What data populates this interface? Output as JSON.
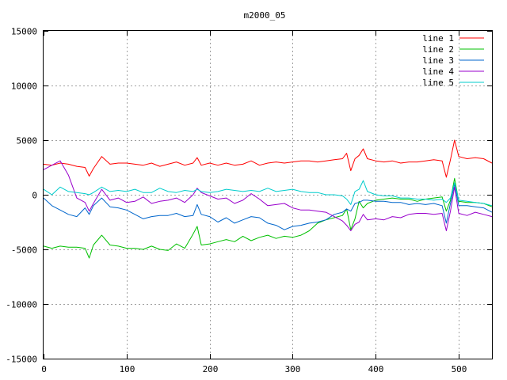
{
  "chart_data": {
    "type": "line",
    "title": "m2000_05",
    "xlabel": "",
    "ylabel": "",
    "xlim": [
      0,
      540
    ],
    "ylim": [
      -15000,
      15000
    ],
    "x_ticks": [
      0,
      100,
      200,
      300,
      400,
      500
    ],
    "y_ticks": [
      -15000,
      -10000,
      -5000,
      0,
      5000,
      10000,
      15000
    ],
    "grid": true,
    "legend_position": "top-right",
    "x": [
      0,
      10,
      20,
      30,
      40,
      50,
      55,
      60,
      70,
      80,
      90,
      100,
      110,
      120,
      130,
      140,
      150,
      160,
      170,
      180,
      185,
      190,
      200,
      210,
      220,
      230,
      240,
      250,
      260,
      270,
      280,
      290,
      300,
      310,
      320,
      330,
      340,
      350,
      360,
      365,
      370,
      375,
      380,
      385,
      390,
      400,
      410,
      420,
      430,
      440,
      450,
      460,
      470,
      480,
      485,
      490,
      495,
      500,
      510,
      520,
      530,
      540
    ],
    "series": [
      {
        "name": "line 1",
        "color": "#ff0000",
        "values": [
          2800,
          2700,
          2900,
          2800,
          2600,
          2500,
          1700,
          2400,
          3500,
          2800,
          2900,
          2900,
          2800,
          2700,
          2900,
          2600,
          2800,
          3000,
          2700,
          2900,
          3400,
          2700,
          2900,
          2700,
          2900,
          2700,
          2800,
          3100,
          2700,
          2900,
          3000,
          2900,
          3000,
          3100,
          3100,
          3000,
          3100,
          3200,
          3300,
          3800,
          2200,
          3300,
          3600,
          4200,
          3300,
          3100,
          3000,
          3100,
          2900,
          3000,
          3000,
          3100,
          3200,
          3100,
          1600,
          3200,
          5000,
          3500,
          3300,
          3400,
          3300,
          2900
        ]
      },
      {
        "name": "line 2",
        "color": "#00c000",
        "values": [
          -4700,
          -4900,
          -4700,
          -4800,
          -4800,
          -4900,
          -5800,
          -4600,
          -3700,
          -4600,
          -4700,
          -4900,
          -4900,
          -5000,
          -4700,
          -5000,
          -5100,
          -4500,
          -4900,
          -3600,
          -2900,
          -4600,
          -4500,
          -4300,
          -4100,
          -4300,
          -3800,
          -4200,
          -3900,
          -3700,
          -4000,
          -3800,
          -3900,
          -3700,
          -3300,
          -2600,
          -2300,
          -2100,
          -1900,
          -1300,
          -3200,
          -2200,
          -600,
          -1200,
          -800,
          -500,
          -400,
          -300,
          -400,
          -400,
          -600,
          -400,
          -300,
          -200,
          -1500,
          -500,
          1500,
          -600,
          -700,
          -700,
          -800,
          -1100
        ]
      },
      {
        "name": "line 3",
        "color": "#0066cc",
        "values": [
          -300,
          -1000,
          -1400,
          -1800,
          -2000,
          -1200,
          -1800,
          -1000,
          -300,
          -1100,
          -1200,
          -1400,
          -1800,
          -2200,
          -2000,
          -1900,
          -1900,
          -1700,
          -2000,
          -1900,
          -900,
          -1800,
          -2000,
          -2500,
          -2100,
          -2600,
          -2300,
          -2000,
          -2100,
          -2600,
          -2800,
          -3200,
          -2900,
          -2800,
          -2600,
          -2500,
          -2300,
          -1800,
          -1600,
          -1300,
          -1500,
          -800,
          -700,
          -500,
          -500,
          -600,
          -600,
          -700,
          -700,
          -900,
          -800,
          -900,
          -800,
          -1000,
          -2600,
          -800,
          1000,
          -1000,
          -1000,
          -1100,
          -1200,
          -1600
        ]
      },
      {
        "name": "line 4",
        "color": "#9900cc",
        "values": [
          2300,
          2700,
          3100,
          1800,
          -300,
          -700,
          -1500,
          -800,
          500,
          -500,
          -300,
          -700,
          -600,
          -200,
          -800,
          -600,
          -500,
          -300,
          -700,
          0,
          600,
          200,
          -100,
          -400,
          -300,
          -800,
          -500,
          100,
          -400,
          -1000,
          -900,
          -800,
          -1200,
          -1400,
          -1400,
          -1500,
          -1600,
          -2000,
          -2400,
          -2800,
          -3300,
          -2700,
          -2500,
          -1800,
          -2300,
          -2200,
          -2300,
          -2000,
          -2100,
          -1800,
          -1700,
          -1700,
          -1800,
          -1700,
          -3300,
          -1500,
          700,
          -1700,
          -1900,
          -1600,
          -1800,
          -2000
        ]
      },
      {
        "name": "line 5",
        "color": "#00cccc",
        "values": [
          500,
          0,
          700,
          300,
          200,
          100,
          0,
          200,
          700,
          300,
          400,
          300,
          500,
          200,
          200,
          600,
          300,
          200,
          400,
          300,
          500,
          300,
          200,
          300,
          500,
          400,
          300,
          400,
          300,
          600,
          300,
          400,
          500,
          300,
          200,
          200,
          0,
          0,
          -100,
          -400,
          -900,
          300,
          500,
          1300,
          300,
          0,
          -100,
          -100,
          -300,
          -300,
          -400,
          -400,
          -500,
          -400,
          -700,
          -300,
          1100,
          -500,
          -600,
          -700,
          -800,
          -1000
        ]
      }
    ]
  }
}
